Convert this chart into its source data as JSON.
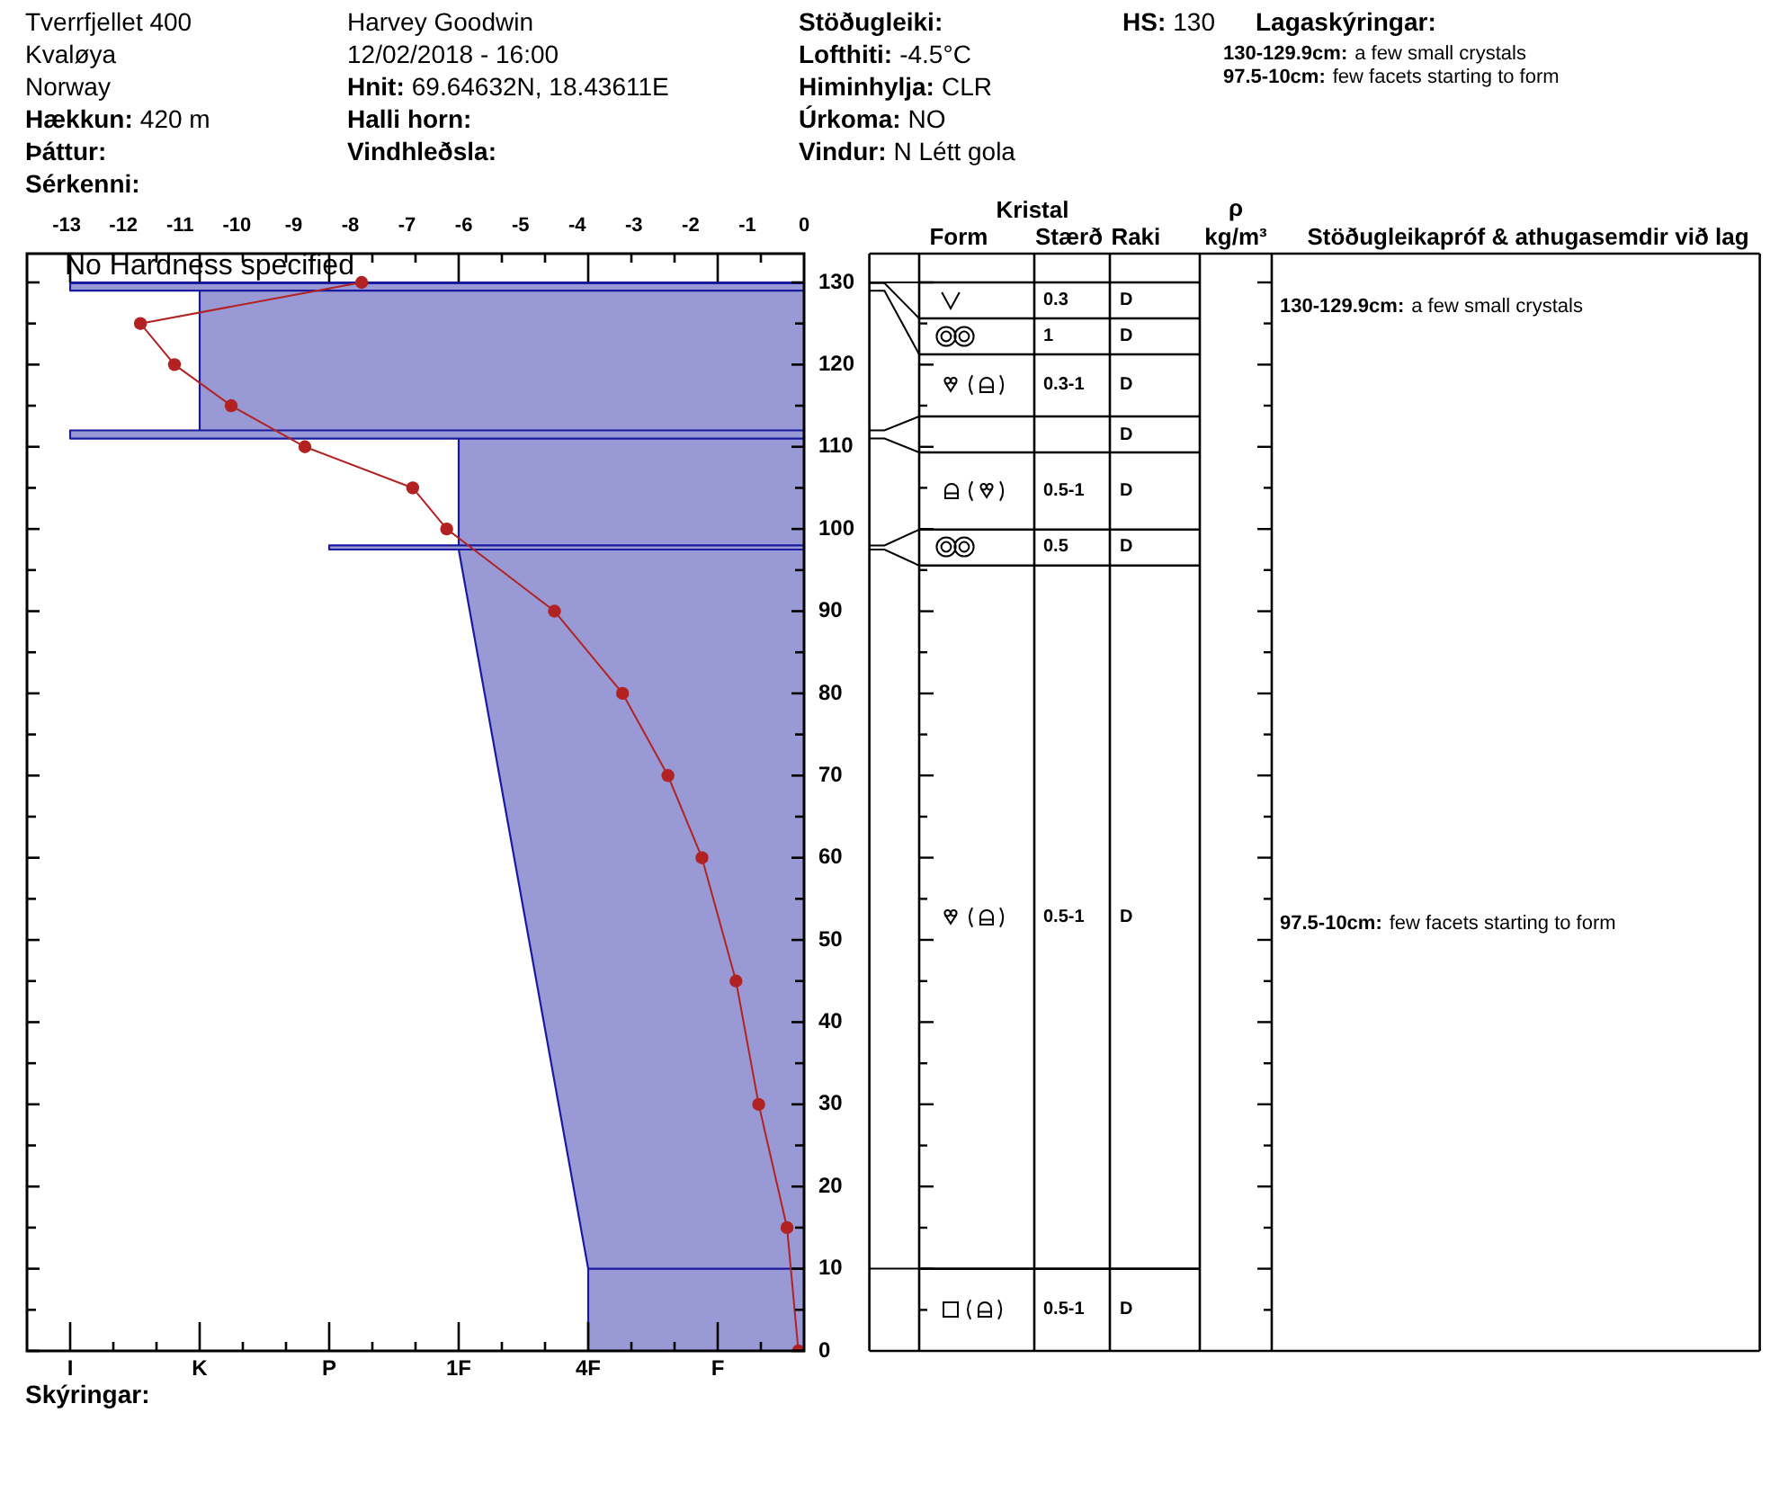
{
  "chart_data": [
    {
      "type": "other",
      "annotations": [
        "Tverrfjellet 400",
        "Kvaløya",
        "Norway",
        "Hækkun: 420 m",
        "Þáttur:",
        "Sérkenni:"
      ]
    },
    {
      "type": "other",
      "annotations": [
        "Harvey Goodwin",
        "12/02/2018 - 16:00",
        "Hnit: 69.64632N, 18.43611E",
        "Halli horn:",
        "Vindhleðsla:"
      ]
    },
    {
      "type": "other",
      "annotations": [
        "Stöðugleiki:",
        "Lofthiti: -4.5°C",
        "Himinhylja: CLR",
        "Úrkoma: NO",
        "Vindur: N Létt gola"
      ]
    },
    {
      "type": "other",
      "annotations": [
        "HS: 130"
      ]
    },
    {
      "type": "other",
      "title": "Lagaskýringar:",
      "annotations": [
        "130-129.9cm: a few small crystals",
        "97.5-10cm: few facets starting to form"
      ]
    },
    {
      "type": "line",
      "series": [
        {
          "type": "area",
          "color": "#9999d5",
          "marker": "none",
          "x": [
            9,
            -8,
            -8,
            9,
            -8,
            -8,
            9,
            -5,
            -5,
            9,
            -8,
            -8,
            9,
            1,
            1,
            9,
            -2,
            -2,
            9,
            1,
            4,
            9,
            4,
            4,
            9
          ],
          "values": [
            130,
            130,
            129.9,
            129.9,
            129.9,
            129,
            129,
            129,
            112,
            112,
            112,
            111,
            111,
            111,
            98,
            98,
            98,
            97.5,
            97.5,
            97.5,
            10,
            10,
            10,
            0,
            0
          ]
        },
        {
          "type": "line",
          "axis": "x2",
          "color": "#b22222",
          "x": [
            -7.8,
            -11.7,
            -11.1,
            -10.1,
            -8.8,
            -6.9,
            -6.3,
            -4.4,
            -3.2,
            -2.4,
            -1.8,
            -1.2,
            -0.8,
            -0.3,
            -0.1
          ],
          "values": [
            130,
            125,
            120,
            115,
            110,
            105,
            100,
            90,
            80,
            70,
            60,
            45,
            30,
            15,
            0
          ]
        }
      ],
      "xlim": [
        -9,
        9
      ],
      "xticks": [
        {
          "value": -8,
          "label": "I"
        },
        {
          "value": -7,
          "label": null
        },
        {
          "value": -6,
          "label": null
        },
        {
          "value": -5,
          "label": "K"
        },
        {
          "value": -4,
          "label": null
        },
        {
          "value": -3,
          "label": null
        },
        {
          "value": -2,
          "label": "P"
        },
        {
          "value": -1,
          "label": null
        },
        {
          "value": 0,
          "label": null
        },
        {
          "value": 1,
          "label": "1F"
        },
        {
          "value": 2,
          "label": null
        },
        {
          "value": 3,
          "label": null
        },
        {
          "value": 4,
          "label": "4F"
        },
        {
          "value": 5,
          "label": null
        },
        {
          "value": 6,
          "label": null
        },
        {
          "value": 7,
          "label": "F"
        },
        {
          "value": 8,
          "label": null
        }
      ],
      "x2lim": [
        -13.7,
        0
      ],
      "x2ticks": [
        -13,
        -12,
        -11,
        -10,
        -9,
        -8,
        -7,
        -6,
        -5,
        -4,
        -3,
        -2,
        -1,
        0
      ],
      "ylim": [
        0,
        133.5
      ],
      "yticks": [
        0,
        {
          "value": 5,
          "label": null
        },
        10,
        {
          "value": 15,
          "label": null
        },
        20,
        {
          "value": 25,
          "label": null
        },
        30,
        {
          "value": 35,
          "label": null
        },
        40,
        {
          "value": 45,
          "label": null
        },
        50,
        {
          "value": 55,
          "label": null
        },
        60,
        {
          "value": 65,
          "label": null
        },
        70,
        {
          "value": 75,
          "label": null
        },
        80,
        {
          "value": 85,
          "label": null
        },
        90,
        {
          "value": 95,
          "label": null
        },
        100,
        {
          "value": 105,
          "label": null
        },
        110,
        {
          "value": 115,
          "label": null
        },
        120,
        {
          "value": 125,
          "label": null
        },
        130
      ],
      "marker": "circle",
      "annotations": [
        {
          "text": "No Hardness specified",
          "x": -8,
          "y": 130
        }
      ]
    },
    {
      "type": "other",
      "title": "Kristal",
      "categories": [
        "Form",
        "Stærð",
        "Raki",
        "ρ kg/m³",
        "Stöðugleikapróf & athugasemdir við lag"
      ],
      "cell_labels": [
        [
          null,
          "0.3",
          "D",
          null,
          "130-129.9cm: a few small crystals"
        ],
        [
          null,
          "1",
          "D",
          null,
          null
        ],
        [
          null,
          "0.3-1",
          "D",
          null,
          null
        ],
        [
          null,
          null,
          "D",
          null,
          null
        ],
        [
          null,
          "0.5-1",
          "D",
          null,
          null
        ],
        [
          null,
          "0.5",
          "D",
          null,
          null
        ],
        [
          null,
          "0.5-1",
          "D",
          null,
          "97.5-10cm: few facets starting to form"
        ],
        [
          null,
          "0.5-1",
          "D",
          null,
          null
        ]
      ]
    },
    {
      "type": "other",
      "annotations": [
        "Skýringar:"
      ]
    }
  ]
}
